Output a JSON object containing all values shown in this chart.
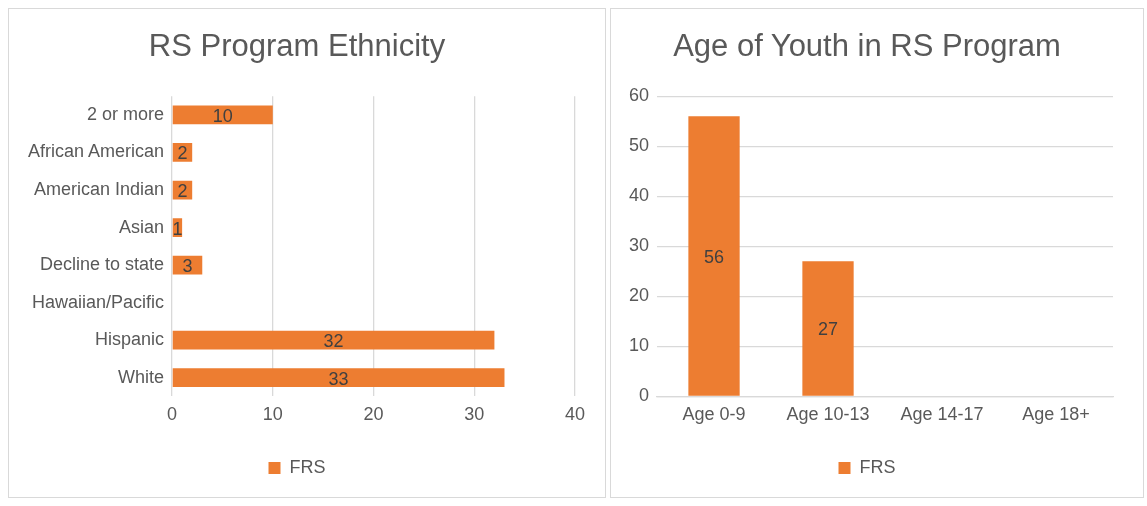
{
  "chart_data": [
    {
      "type": "bar",
      "orientation": "horizontal",
      "title": "RS Program Ethnicity",
      "categories": [
        "2 or more",
        "African American",
        "American Indian",
        "Asian",
        "Decline to state",
        "Hawaiian/Pacific",
        "Hispanic",
        "White"
      ],
      "series": [
        {
          "name": "FRS",
          "color": "#ed7d31",
          "values": [
            10,
            2,
            2,
            1,
            3,
            null,
            32,
            33
          ]
        }
      ],
      "xlim": [
        0,
        40
      ],
      "xticks": [
        0,
        10,
        20,
        30,
        40
      ],
      "grid": "x",
      "legend": "bottom",
      "data_labels": true
    },
    {
      "type": "bar",
      "title": "Age of Youth in RS Program",
      "categories": [
        "Age 0-9",
        "Age 10-13",
        "Age 14-17",
        "Age 18+"
      ],
      "series": [
        {
          "name": "FRS",
          "color": "#ed7d31",
          "values": [
            56,
            27,
            null,
            null
          ]
        }
      ],
      "ylim": [
        0,
        60
      ],
      "yticks": [
        0,
        10,
        20,
        30,
        40,
        50,
        60
      ],
      "grid": "y",
      "legend": "bottom",
      "data_labels": true
    }
  ]
}
